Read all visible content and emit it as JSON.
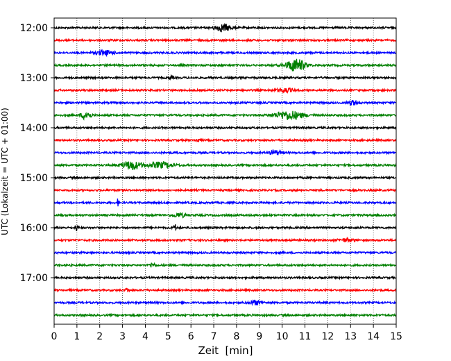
{
  "chart_data": {
    "type": "line",
    "title": "",
    "xlabel": "Zeit  [min]",
    "ylabel": "UTC (Lokalzeit = UTC + 01:00)",
    "xlim": [
      0,
      15
    ],
    "x_ticks": [
      "0",
      "1",
      "2",
      "3",
      "4",
      "5",
      "6",
      "7",
      "8",
      "9",
      "10",
      "11",
      "12",
      "13",
      "14",
      "15"
    ],
    "y_tick_labels": [
      "12:00",
      "13:00",
      "14:00",
      "15:00",
      "16:00",
      "17:00"
    ],
    "grid": "vertical dotted lines at each minute",
    "trace_colors": [
      "#000000",
      "#ff0000",
      "#0000ff",
      "#008000"
    ],
    "traces": [
      {
        "start": "12:00",
        "color": "#000000",
        "events": [
          {
            "t": 7.4,
            "amp": 5,
            "width": 0.5
          }
        ]
      },
      {
        "start": "12:15",
        "color": "#ff0000",
        "events": []
      },
      {
        "start": "12:30",
        "color": "#0000ff",
        "events": [
          {
            "t": 2.2,
            "amp": 3,
            "width": 0.6
          }
        ]
      },
      {
        "start": "12:45",
        "color": "#008000",
        "events": [
          {
            "t": 10.6,
            "amp": 9,
            "width": 0.6
          }
        ]
      },
      {
        "start": "13:00",
        "color": "#000000",
        "events": [
          {
            "t": 5.1,
            "amp": 3,
            "width": 0.1
          }
        ]
      },
      {
        "start": "13:15",
        "color": "#ff0000",
        "events": [
          {
            "t": 10.1,
            "amp": 3,
            "width": 0.5
          }
        ]
      },
      {
        "start": "13:30",
        "color": "#0000ff",
        "events": [
          {
            "t": 13.1,
            "amp": 3,
            "width": 0.3
          }
        ]
      },
      {
        "start": "13:45",
        "color": "#008000",
        "events": [
          {
            "t": 1.4,
            "amp": 6,
            "width": 0.3
          },
          {
            "t": 10.3,
            "amp": 6,
            "width": 0.9
          }
        ]
      },
      {
        "start": "14:00",
        "color": "#000000",
        "events": []
      },
      {
        "start": "14:15",
        "color": "#ff0000",
        "events": [
          {
            "t": 6.3,
            "amp": 3,
            "width": 0.1
          }
        ]
      },
      {
        "start": "14:30",
        "color": "#0000ff",
        "events": [
          {
            "t": 9.7,
            "amp": 3,
            "width": 0.4
          }
        ]
      },
      {
        "start": "14:45",
        "color": "#008000",
        "events": [
          {
            "t": 3.4,
            "amp": 6,
            "width": 0.6
          },
          {
            "t": 4.7,
            "amp": 4,
            "width": 0.8
          }
        ]
      },
      {
        "start": "15:00",
        "color": "#000000",
        "events": []
      },
      {
        "start": "15:15",
        "color": "#ff0000",
        "events": []
      },
      {
        "start": "15:30",
        "color": "#0000ff",
        "events": [
          {
            "t": 2.8,
            "amp": 6,
            "width": 0.05
          }
        ]
      },
      {
        "start": "15:45",
        "color": "#008000",
        "events": [
          {
            "t": 5.5,
            "amp": 3,
            "width": 0.4
          }
        ]
      },
      {
        "start": "16:00",
        "color": "#000000",
        "events": [
          {
            "t": 1.0,
            "amp": 4,
            "width": 0.1
          },
          {
            "t": 5.3,
            "amp": 4,
            "width": 0.1
          }
        ]
      },
      {
        "start": "16:15",
        "color": "#ff0000",
        "events": [
          {
            "t": 12.8,
            "amp": 2,
            "width": 0.5
          }
        ]
      },
      {
        "start": "16:30",
        "color": "#0000ff",
        "events": []
      },
      {
        "start": "16:45",
        "color": "#008000",
        "events": [
          {
            "t": 4.3,
            "amp": 3,
            "width": 0.2
          }
        ]
      },
      {
        "start": "17:00",
        "color": "#000000",
        "events": []
      },
      {
        "start": "17:15",
        "color": "#ff0000",
        "events": [
          {
            "t": 3.2,
            "amp": 3,
            "width": 0.1
          }
        ]
      },
      {
        "start": "17:30",
        "color": "#0000ff",
        "events": [
          {
            "t": 8.8,
            "amp": 3,
            "width": 0.4
          }
        ]
      },
      {
        "start": "17:45",
        "color": "#008000",
        "events": []
      }
    ]
  }
}
